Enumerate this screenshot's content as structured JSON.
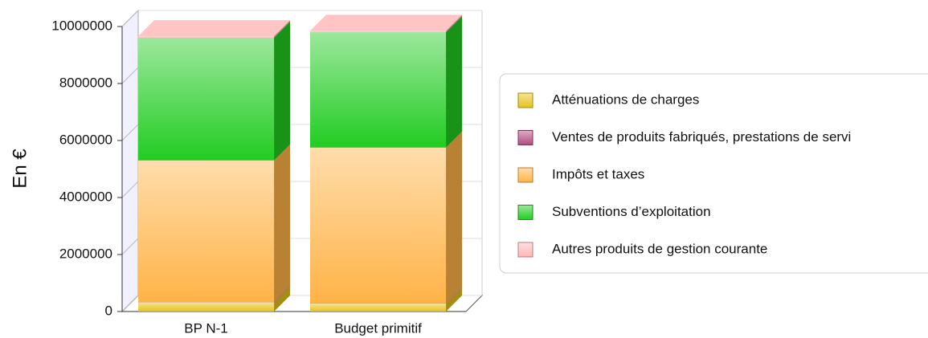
{
  "chart_data": {
    "type": "stacked_bar_3d",
    "y_label": "En €",
    "categories": [
      "BP N-1",
      "Budget primitif"
    ],
    "series": [
      {
        "name": "Atténuations de charges",
        "color": "#e6c21a",
        "values": [
          330000,
          280000
        ]
      },
      {
        "name": "Ventes de produits fabriqués, prestations de servi",
        "color": "#b34a80",
        "values": [
          20000,
          20000
        ]
      },
      {
        "name": "Impôts et taxes",
        "color": "#ffb347",
        "values": [
          4950000,
          5450000
        ]
      },
      {
        "name": "Subventions d’exploitation",
        "color": "#22cc22",
        "values": [
          4310000,
          4050000
        ]
      },
      {
        "name": "Autres produits de gestion courante",
        "color": "#ffb6b6",
        "values": [
          50000,
          50000
        ]
      }
    ],
    "ylim": [
      0,
      10000000
    ],
    "yticks": [
      0,
      2000000,
      4000000,
      6000000,
      8000000,
      10000000
    ],
    "grid": true
  }
}
